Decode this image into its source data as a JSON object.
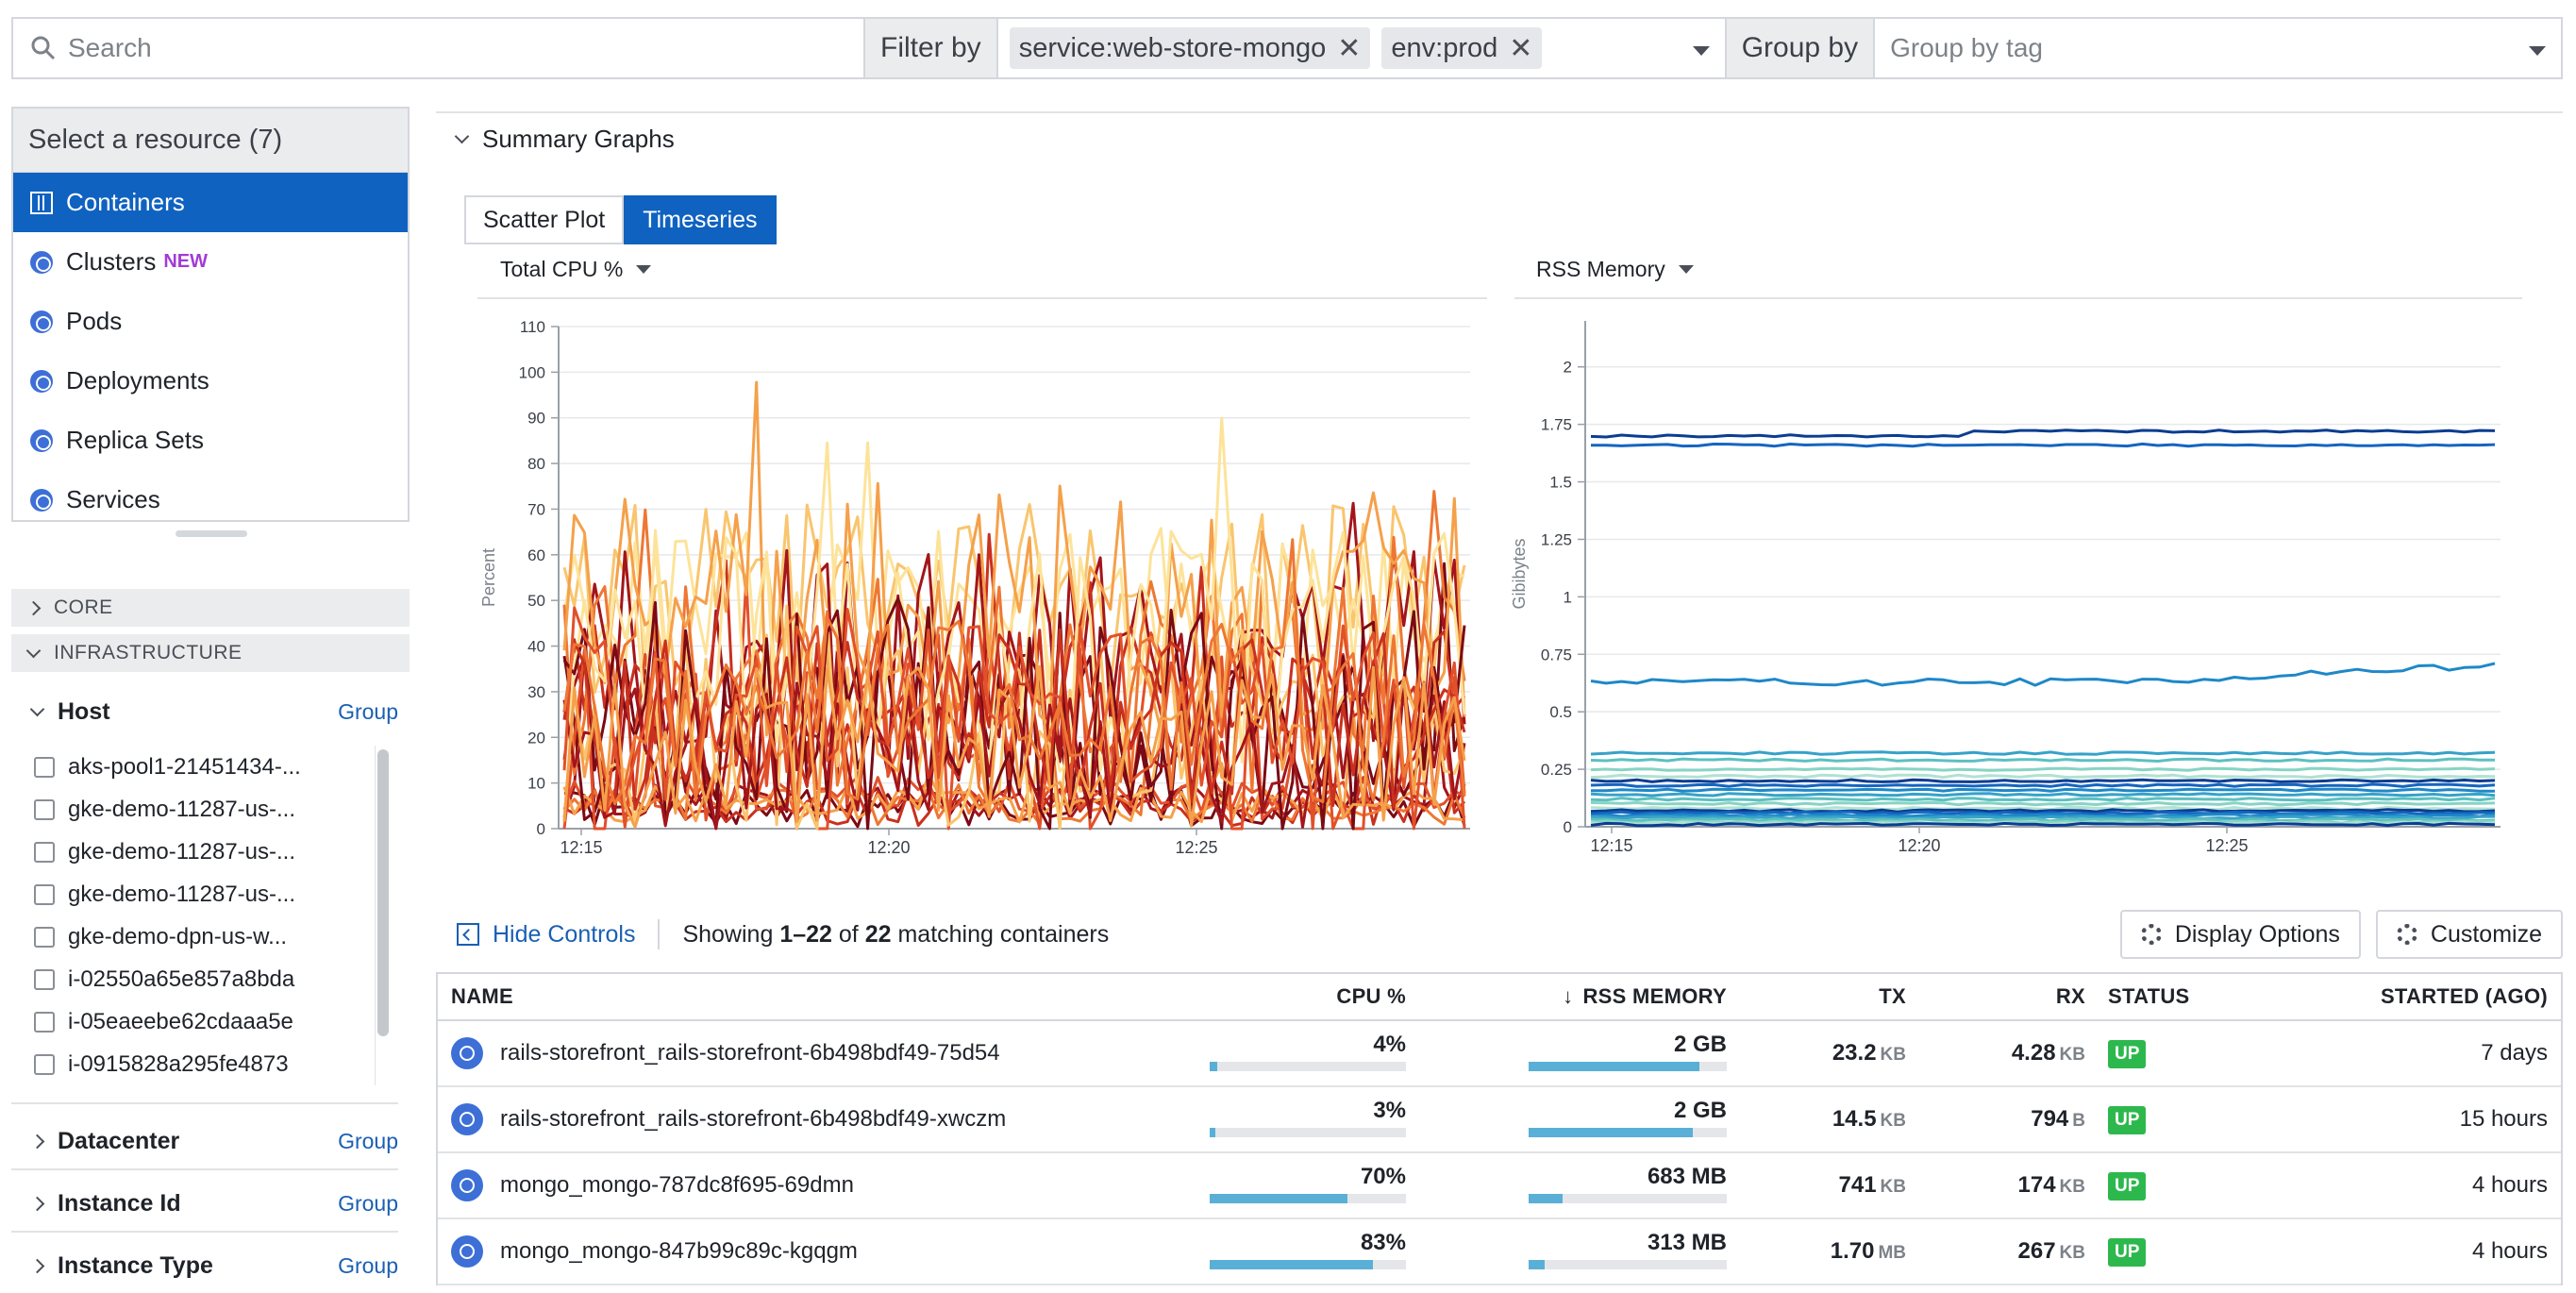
{
  "topbar": {
    "search_placeholder": "Search",
    "filter_label": "Filter by",
    "filters": [
      "service:web-store-mongo",
      "env:prod"
    ],
    "group_label": "Group by",
    "group_placeholder": "Group by tag"
  },
  "sidebar": {
    "resource_title": "Select a resource (7)",
    "resources": [
      {
        "label": "Containers",
        "active": true
      },
      {
        "label": "Clusters",
        "badge": "NEW"
      },
      {
        "label": "Pods"
      },
      {
        "label": "Deployments"
      },
      {
        "label": "Replica Sets"
      },
      {
        "label": "Services"
      }
    ],
    "sections": [
      "CORE",
      "INFRASTRUCTURE"
    ],
    "group_link": "Group",
    "host_facet": "Host",
    "hosts": [
      "aks-pool1-21451434-...",
      "gke-demo-11287-us-...",
      "gke-demo-11287-us-...",
      "gke-demo-11287-us-...",
      "gke-demo-dpn-us-w...",
      "i-02550a65e857a8bda",
      "i-05eaeebe62cdaaa5e",
      "i-0915828a295fe4873"
    ],
    "facets": [
      "Datacenter",
      "Instance Id",
      "Instance Type"
    ]
  },
  "summary": {
    "title": "Summary Graphs",
    "tabs": [
      "Scatter Plot",
      "Timeseries"
    ],
    "active_tab": "Timeseries"
  },
  "chart_data": [
    {
      "type": "line",
      "title": "Total CPU %",
      "ylabel": "Percent",
      "ylim": [
        0,
        110
      ],
      "yticks": [
        0,
        10,
        20,
        30,
        40,
        50,
        60,
        70,
        80,
        90,
        100,
        110
      ],
      "xticks": [
        "12:15",
        "12:20",
        "12:25"
      ],
      "series_count": 22,
      "palette": [
        "#7a0a14",
        "#a3151b",
        "#c9301e",
        "#e2502a",
        "#ee7733",
        "#f5a04a",
        "#f9c56e",
        "#fde39a"
      ]
    },
    {
      "type": "line",
      "title": "RSS Memory",
      "ylabel": "Gibibytes",
      "ylim": [
        0,
        2.2
      ],
      "yticks": [
        0,
        0.25,
        0.5,
        0.75,
        1,
        1.25,
        1.5,
        1.75,
        2
      ],
      "xticks": [
        "12:15",
        "12:20",
        "12:25"
      ],
      "series_count": 22,
      "palette": [
        "#0b3d91",
        "#1565c0",
        "#1e88c8",
        "#36a2c9",
        "#5cc0c0",
        "#86d4c4",
        "#b0e2d2"
      ]
    }
  ],
  "controls": {
    "hide_controls": "Hide Controls",
    "showing_prefix": "Showing",
    "showing_range": "1–22",
    "showing_of": "of",
    "showing_total": "22",
    "showing_suffix": "matching containers",
    "display_options": "Display Options",
    "customize": "Customize"
  },
  "table": {
    "columns": [
      "NAME",
      "CPU %",
      "RSS MEMORY",
      "TX",
      "RX",
      "STATUS",
      "STARTED (AGO)"
    ],
    "rows": [
      {
        "name": "rails-storefront_rails-storefront-6b498bdf49-75d54",
        "cpu": "4%",
        "cpu_frac": 0.04,
        "mem": "2 GB",
        "mem_frac": 0.86,
        "tx": "23.2",
        "tx_unit": "KB",
        "rx": "4.28",
        "rx_unit": "KB",
        "status": "UP",
        "started": "7 days"
      },
      {
        "name": "rails-storefront_rails-storefront-6b498bdf49-xwczm",
        "cpu": "3%",
        "cpu_frac": 0.03,
        "mem": "2 GB",
        "mem_frac": 0.83,
        "tx": "14.5",
        "tx_unit": "KB",
        "rx": "794",
        "rx_unit": "B",
        "status": "UP",
        "started": "15 hours"
      },
      {
        "name": "mongo_mongo-787dc8f695-69dmn",
        "cpu": "70%",
        "cpu_frac": 0.7,
        "mem": "683 MB",
        "mem_frac": 0.17,
        "tx": "741",
        "tx_unit": "KB",
        "rx": "174",
        "rx_unit": "KB",
        "status": "UP",
        "started": "4 hours"
      },
      {
        "name": "mongo_mongo-847b99c89c-kgqgm",
        "cpu": "83%",
        "cpu_frac": 0.83,
        "mem": "313 MB",
        "mem_frac": 0.08,
        "tx": "1.70",
        "tx_unit": "MB",
        "rx": "267",
        "rx_unit": "KB",
        "status": "UP",
        "started": "4 hours"
      }
    ]
  }
}
